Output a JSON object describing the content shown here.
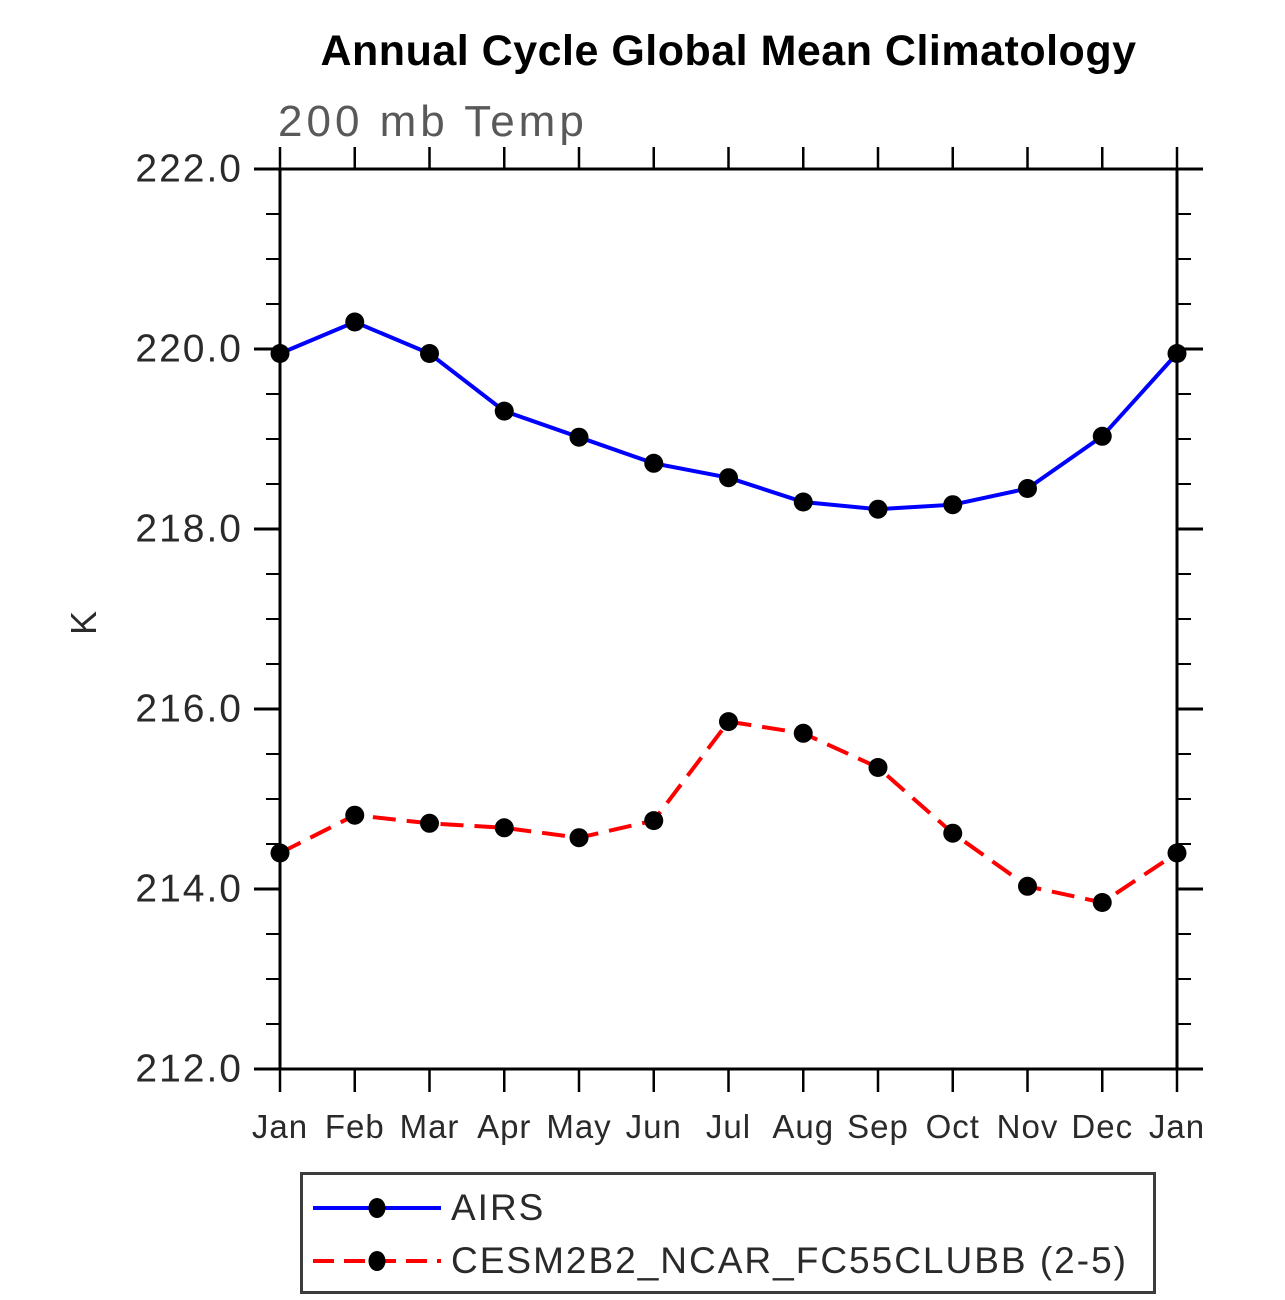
{
  "title": "Annual Cycle Global Mean Climatology",
  "colors": {
    "background": "#ffffff",
    "axis": "#000000",
    "title_text": "#000000",
    "subtitle_text": "#595959",
    "tick_label_text": "#2a2a2a",
    "legend_border": "#3c3c3c",
    "legend_text": "#2a2a2a",
    "marker": "#000000",
    "airs_line": "#0000ff",
    "cesm_line": "#ff0000"
  },
  "chart_data": {
    "type": "line",
    "title": "Annual Cycle Global Mean Climatology",
    "subtitle": "200 mb Temp",
    "xlabel": "",
    "ylabel": "K",
    "x_tick_labels": [
      "Jan",
      "Feb",
      "Mar",
      "Apr",
      "May",
      "Jun",
      "Jul",
      "Aug",
      "Sep",
      "Oct",
      "Nov",
      "Dec",
      "Jan"
    ],
    "ylim": [
      212.0,
      222.0
    ],
    "y_major_ticks": [
      212.0,
      214.0,
      216.0,
      218.0,
      220.0,
      222.0
    ],
    "y_tick_labels": [
      "212.0",
      "214.0",
      "216.0",
      "218.0",
      "220.0",
      "222.0"
    ],
    "y_minor_step": 0.5,
    "grid": false,
    "legend_position": "bottom-box",
    "series": [
      {
        "name": "AIRS",
        "color": "#0000ff",
        "line_style": "solid",
        "marker": "filled-circle",
        "marker_color": "#000000",
        "values": [
          219.95,
          220.3,
          219.95,
          219.31,
          219.02,
          218.73,
          218.57,
          218.3,
          218.22,
          218.27,
          218.45,
          219.03,
          219.95
        ]
      },
      {
        "name": "CESM2B2_NCAR_FC55CLUBB (2-5)",
        "color": "#ff0000",
        "line_style": "dashed",
        "marker": "filled-circle",
        "marker_color": "#000000",
        "values": [
          214.4,
          214.82,
          214.73,
          214.68,
          214.57,
          214.76,
          215.86,
          215.73,
          215.35,
          214.62,
          214.03,
          213.85,
          214.4
        ]
      }
    ]
  }
}
